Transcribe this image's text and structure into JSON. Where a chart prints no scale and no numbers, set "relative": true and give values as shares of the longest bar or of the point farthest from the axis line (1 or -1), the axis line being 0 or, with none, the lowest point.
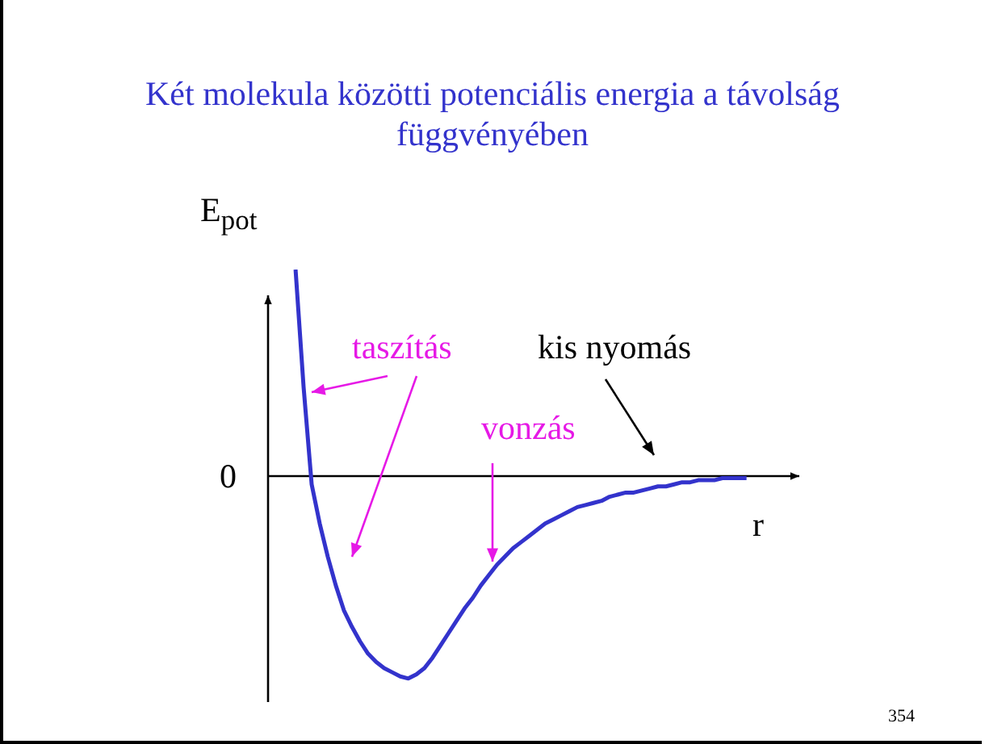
{
  "chart_data": {
    "type": "line",
    "title": "Két molekula közötti potenciális energia a távolság függvényében",
    "xlabel": "r",
    "ylabel": "E$_{pot}$",
    "annotations": [
      "0",
      "taszítás",
      "vonzás",
      "kis nyomás",
      "354"
    ],
    "categories": [
      null,
      null,
      null,
      null,
      null,
      null,
      null,
      null,
      null,
      null,
      null,
      null,
      null,
      null,
      null,
      null,
      null,
      null,
      null,
      null,
      null,
      null,
      null,
      null,
      null,
      null,
      null,
      null,
      null,
      null,
      null,
      null,
      null,
      null,
      null,
      null,
      null,
      null,
      null,
      null,
      null,
      null,
      null,
      null,
      null,
      null,
      null,
      null,
      null,
      null,
      null,
      null,
      null,
      null,
      null,
      null,
      null
    ],
    "values": [
      1.0,
      0.43,
      -0.04,
      -0.23,
      -0.39,
      -0.53,
      -0.65,
      -0.73,
      -0.8,
      -0.86,
      -0.9,
      -0.93,
      -0.95,
      -0.97,
      -0.98,
      -0.96,
      -0.93,
      -0.88,
      -0.82,
      -0.76,
      -0.7,
      -0.64,
      -0.59,
      -0.53,
      -0.48,
      -0.43,
      -0.39,
      -0.35,
      -0.32,
      -0.29,
      -0.26,
      -0.23,
      -0.21,
      -0.19,
      -0.17,
      -0.15,
      -0.14,
      -0.13,
      -0.12,
      -0.1,
      -0.09,
      -0.08,
      -0.08,
      -0.07,
      -0.06,
      -0.05,
      -0.05,
      -0.04,
      -0.03,
      -0.03,
      -0.02,
      -0.02,
      -0.02,
      -0.01,
      -0.01,
      -0.01,
      -0.01
    ],
    "color": "#3333cc",
    "relative": true,
    "legend": false,
    "marker": "none"
  }
}
